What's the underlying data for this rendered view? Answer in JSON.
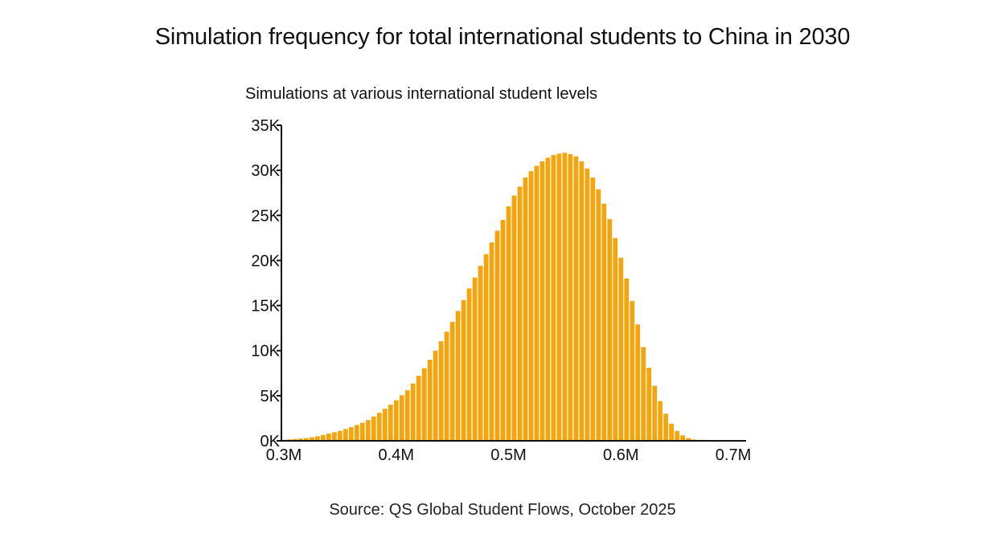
{
  "title": "Simulation frequency for total international students to China in 2030",
  "source": "Source: QS Global Student Flows, October 2025",
  "chart_data": {
    "type": "bar",
    "title": "Simulation frequency for total international students to China in 2030",
    "subtitle": "Simulations at various international student levels",
    "xlabel": "",
    "ylabel": "Simulations at various international student levels",
    "xlim": [
      0.3,
      0.71
    ],
    "ylim": [
      0,
      35000
    ],
    "bin_width": 0.005,
    "x_ticks": [
      {
        "value": 0.3,
        "label": "0.3M"
      },
      {
        "value": 0.4,
        "label": "0.4M"
      },
      {
        "value": 0.5,
        "label": "0.5M"
      },
      {
        "value": 0.6,
        "label": "0.6M"
      },
      {
        "value": 0.7,
        "label": "0.7M"
      }
    ],
    "y_ticks": [
      {
        "value": 0,
        "label": "0K"
      },
      {
        "value": 5000,
        "label": "5K"
      },
      {
        "value": 10000,
        "label": "10K"
      },
      {
        "value": 15000,
        "label": "15K"
      },
      {
        "value": 20000,
        "label": "20K"
      },
      {
        "value": 25000,
        "label": "25K"
      },
      {
        "value": 30000,
        "label": "30K"
      },
      {
        "value": 35000,
        "label": "35K"
      }
    ],
    "x": [
      0.3,
      0.305,
      0.31,
      0.315,
      0.32,
      0.325,
      0.33,
      0.335,
      0.34,
      0.345,
      0.35,
      0.355,
      0.36,
      0.365,
      0.37,
      0.375,
      0.38,
      0.385,
      0.39,
      0.395,
      0.4,
      0.405,
      0.41,
      0.415,
      0.42,
      0.425,
      0.43,
      0.435,
      0.44,
      0.445,
      0.45,
      0.455,
      0.46,
      0.465,
      0.47,
      0.475,
      0.48,
      0.485,
      0.49,
      0.495,
      0.5,
      0.505,
      0.51,
      0.515,
      0.52,
      0.525,
      0.53,
      0.535,
      0.54,
      0.545,
      0.55,
      0.555,
      0.56,
      0.565,
      0.57,
      0.575,
      0.58,
      0.585,
      0.59,
      0.595,
      0.6,
      0.605,
      0.61,
      0.615,
      0.62,
      0.625,
      0.63,
      0.635,
      0.64,
      0.645,
      0.65,
      0.655,
      0.66,
      0.665,
      0.67,
      0.675,
      0.68,
      0.685,
      0.69,
      0.695,
      0.7,
      0.705
    ],
    "values": [
      100,
      150,
      200,
      250,
      300,
      400,
      500,
      650,
      800,
      950,
      1100,
      1300,
      1500,
      1750,
      2000,
      2300,
      2700,
      3100,
      3550,
      4000,
      4500,
      5050,
      5600,
      6350,
      7200,
      8050,
      9000,
      10000,
      11050,
      12100,
      13200,
      14400,
      15600,
      16900,
      18100,
      19400,
      20700,
      22000,
      23300,
      24500,
      26000,
      27200,
      28200,
      29200,
      29900,
      30500,
      31000,
      31400,
      31700,
      31850,
      31950,
      31800,
      31550,
      31000,
      30200,
      29200,
      27900,
      26300,
      24600,
      22500,
      20300,
      18000,
      15500,
      12900,
      10400,
      8100,
      6100,
      4400,
      3000,
      1900,
      1100,
      600,
      300,
      150,
      100,
      100,
      80,
      60,
      40,
      30,
      20,
      10
    ],
    "bar_color": "#F4A40D",
    "grid": false,
    "legend": "none"
  }
}
